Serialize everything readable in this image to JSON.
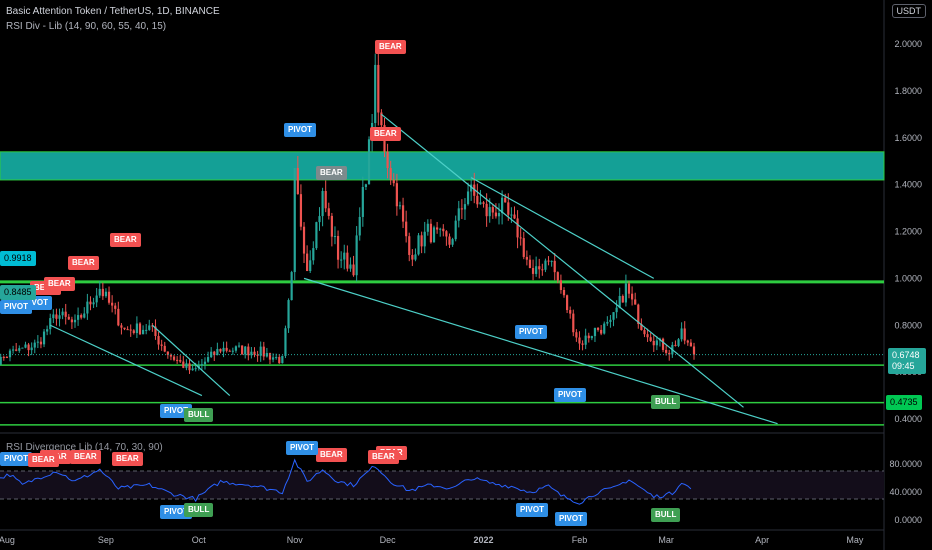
{
  "header": {
    "title": "Basic Attention Token / TetherUS, 1D, BINANCE",
    "indicator": "RSI Div - Lib (14, 90, 60, 55, 40, 15)",
    "lower_indicator": "RSI Divergence Lib (14, 70, 30, 90)",
    "currency": "USDT"
  },
  "colors": {
    "background": "#000000",
    "up": "#26a69a",
    "down": "#ef5350",
    "zone": "#14a096",
    "support_line": "#2ecc40",
    "trend_line": "#4dd0c8",
    "rsi_line": "#2962ff"
  },
  "chart_data": [
    {
      "type": "candlestick",
      "title": "Basic Attention Token / TetherUS, 1D, BINANCE",
      "x_ticks": [
        "Aug",
        "Sep",
        "Oct",
        "Nov",
        "Dec",
        "2022",
        "Feb",
        "Mar",
        "Apr",
        "May"
      ],
      "y_ticks": [
        "2.0000",
        "1.8000",
        "1.6000",
        "1.4000",
        "1.2000",
        "1.0000",
        "0.8000",
        "0.6000",
        "0.4000"
      ],
      "ylim": [
        0.3,
        2.1
      ],
      "grid": false,
      "close_anchors": [
        [
          "2021-07-25",
          0.62
        ],
        [
          "2021-08-01",
          0.68
        ],
        [
          "2021-08-10",
          0.72
        ],
        [
          "2021-08-16",
          0.85
        ],
        [
          "2021-08-22",
          0.8
        ],
        [
          "2021-08-30",
          0.96
        ],
        [
          "2021-09-07",
          0.78
        ],
        [
          "2021-09-15",
          0.79
        ],
        [
          "2021-09-21",
          0.68
        ],
        [
          "2021-09-29",
          0.6
        ],
        [
          "2021-10-08",
          0.7
        ],
        [
          "2021-10-20",
          0.69
        ],
        [
          "2021-10-28",
          0.65
        ],
        [
          "2021-10-31",
          1.0
        ],
        [
          "2021-11-01",
          1.43
        ],
        [
          "2021-11-05",
          1.05
        ],
        [
          "2021-11-10",
          1.35
        ],
        [
          "2021-11-15",
          1.1
        ],
        [
          "2021-11-20",
          1.05
        ],
        [
          "2021-11-25",
          1.55
        ],
        [
          "2021-11-27",
          1.85
        ],
        [
          "2021-11-28",
          1.7
        ],
        [
          "2021-12-01",
          1.5
        ],
        [
          "2021-12-04",
          1.35
        ],
        [
          "2021-12-08",
          1.1
        ],
        [
          "2021-12-14",
          1.2
        ],
        [
          "2021-12-21",
          1.15
        ],
        [
          "2021-12-27",
          1.38
        ],
        [
          "2022-01-02",
          1.28
        ],
        [
          "2022-01-07",
          1.3
        ],
        [
          "2022-01-12",
          1.2
        ],
        [
          "2022-01-17",
          1.0
        ],
        [
          "2022-01-22",
          1.1
        ],
        [
          "2022-01-26",
          0.95
        ],
        [
          "2022-02-01",
          0.72
        ],
        [
          "2022-02-06",
          0.78
        ],
        [
          "2022-02-11",
          0.8
        ],
        [
          "2022-02-16",
          0.96
        ],
        [
          "2022-02-21",
          0.8
        ],
        [
          "2022-02-25",
          0.74
        ],
        [
          "2022-03-02",
          0.69
        ],
        [
          "2022-03-06",
          0.76
        ],
        [
          "2022-03-10",
          0.6748
        ]
      ],
      "last_price": "0.6748",
      "countdown": "09:45",
      "level_badges": [
        {
          "label": "0.6748",
          "color": "#26a69a"
        },
        {
          "label": "0.4735",
          "color": "#00c853"
        },
        {
          "label": "0.9918",
          "color": "#00bcd4"
        },
        {
          "label": "0.8485",
          "color": "#26a69a"
        }
      ],
      "zone": [
        1.42,
        1.54
      ],
      "support_levels": [
        0.985,
        0.63,
        0.47,
        0.375
      ],
      "trend_lines": [
        [
          [
            "2021-11-29",
            1.7
          ],
          [
            "2022-03-26",
            0.45
          ]
        ],
        [
          [
            "2021-11-04",
            1.0
          ],
          [
            "2022-04-06",
            0.38
          ]
        ],
        [
          [
            "2021-12-28",
            1.43
          ],
          [
            "2022-02-25",
            1.0
          ]
        ],
        [
          [
            "2021-08-14",
            0.8
          ],
          [
            "2021-10-02",
            0.5
          ]
        ],
        [
          [
            "2021-09-16",
            0.8
          ],
          [
            "2021-10-11",
            0.5
          ]
        ]
      ],
      "signals": [
        {
          "label": "BEAR",
          "kind": "bear"
        },
        {
          "label": "PIVOT",
          "kind": "pivot"
        },
        {
          "label": "BEAR",
          "kind": "bear-gray"
        },
        {
          "label": "BEAR",
          "kind": "bear"
        },
        {
          "label": "BEAR",
          "kind": "bear"
        },
        {
          "label": "BEAR",
          "kind": "bear"
        },
        {
          "label": "PIVOT",
          "kind": "pivot"
        },
        {
          "label": "PIVOT",
          "kind": "pivot"
        },
        {
          "label": "BULL",
          "kind": "bull"
        },
        {
          "label": "PIVOT",
          "kind": "pivot"
        },
        {
          "label": "BULL",
          "kind": "bull"
        },
        {
          "label": "PIVOT",
          "kind": "pivot"
        },
        {
          "label": "PIVOT",
          "kind": "pivot"
        },
        {
          "label": "BEAR",
          "kind": "bear"
        },
        {
          "label": "BEAR",
          "kind": "bear"
        }
      ]
    },
    {
      "type": "line",
      "title": "RSI Divergence Lib (14, 70, 30, 90)",
      "y_ticks": [
        "80.0000",
        "40.0000",
        "0.0000"
      ],
      "ylim": [
        0,
        100
      ],
      "levels": [
        70,
        30
      ],
      "series": [
        {
          "values": [
            [
              "2021-07-25",
              55
            ],
            [
              "2021-08-01",
              65
            ],
            [
              "2021-08-05",
              50
            ],
            [
              "2021-08-10",
              60
            ],
            [
              "2021-08-16",
              70
            ],
            [
              "2021-08-22",
              55
            ],
            [
              "2021-08-30",
              72
            ],
            [
              "2021-09-05",
              45
            ],
            [
              "2021-09-15",
              50
            ],
            [
              "2021-09-22",
              38
            ],
            [
              "2021-09-30",
              30
            ],
            [
              "2021-10-08",
              55
            ],
            [
              "2021-10-18",
              50
            ],
            [
              "2021-10-28",
              40
            ],
            [
              "2021-11-01",
              85
            ],
            [
              "2021-11-05",
              55
            ],
            [
              "2021-11-10",
              72
            ],
            [
              "2021-11-15",
              55
            ],
            [
              "2021-11-20",
              50
            ],
            [
              "2021-11-27",
              78
            ],
            [
              "2021-12-02",
              55
            ],
            [
              "2021-12-08",
              42
            ],
            [
              "2021-12-15",
              50
            ],
            [
              "2021-12-22",
              45
            ],
            [
              "2021-12-28",
              60
            ],
            [
              "2022-01-04",
              52
            ],
            [
              "2022-01-10",
              48
            ],
            [
              "2022-01-16",
              40
            ],
            [
              "2022-01-22",
              48
            ],
            [
              "2022-01-26",
              35
            ],
            [
              "2022-02-01",
              25
            ],
            [
              "2022-02-07",
              40
            ],
            [
              "2022-02-12",
              45
            ],
            [
              "2022-02-17",
              58
            ],
            [
              "2022-02-22",
              42
            ],
            [
              "2022-02-25",
              33
            ],
            [
              "2022-03-03",
              38
            ],
            [
              "2022-03-06",
              55
            ],
            [
              "2022-03-10",
              40
            ]
          ]
        }
      ],
      "signals": [
        {
          "label": "PIVOT",
          "kind": "pivot"
        },
        {
          "label": "BEAR",
          "kind": "bear"
        },
        {
          "label": "BEAR",
          "kind": "bear"
        },
        {
          "label": "BEAR",
          "kind": "bear"
        },
        {
          "label": "BEAR",
          "kind": "bear"
        },
        {
          "label": "BEAR",
          "kind": "bear"
        },
        {
          "label": "PIVOT",
          "kind": "pivot"
        },
        {
          "label": "BEAR",
          "kind": "bear"
        },
        {
          "label": "BEAR",
          "kind": "bear"
        },
        {
          "label": "PIVOT",
          "kind": "pivot"
        },
        {
          "label": "BULL",
          "kind": "bull"
        },
        {
          "label": "PIVOT",
          "kind": "pivot"
        },
        {
          "label": "PIVOT",
          "kind": "pivot"
        },
        {
          "label": "BULL",
          "kind": "bull"
        }
      ]
    }
  ]
}
